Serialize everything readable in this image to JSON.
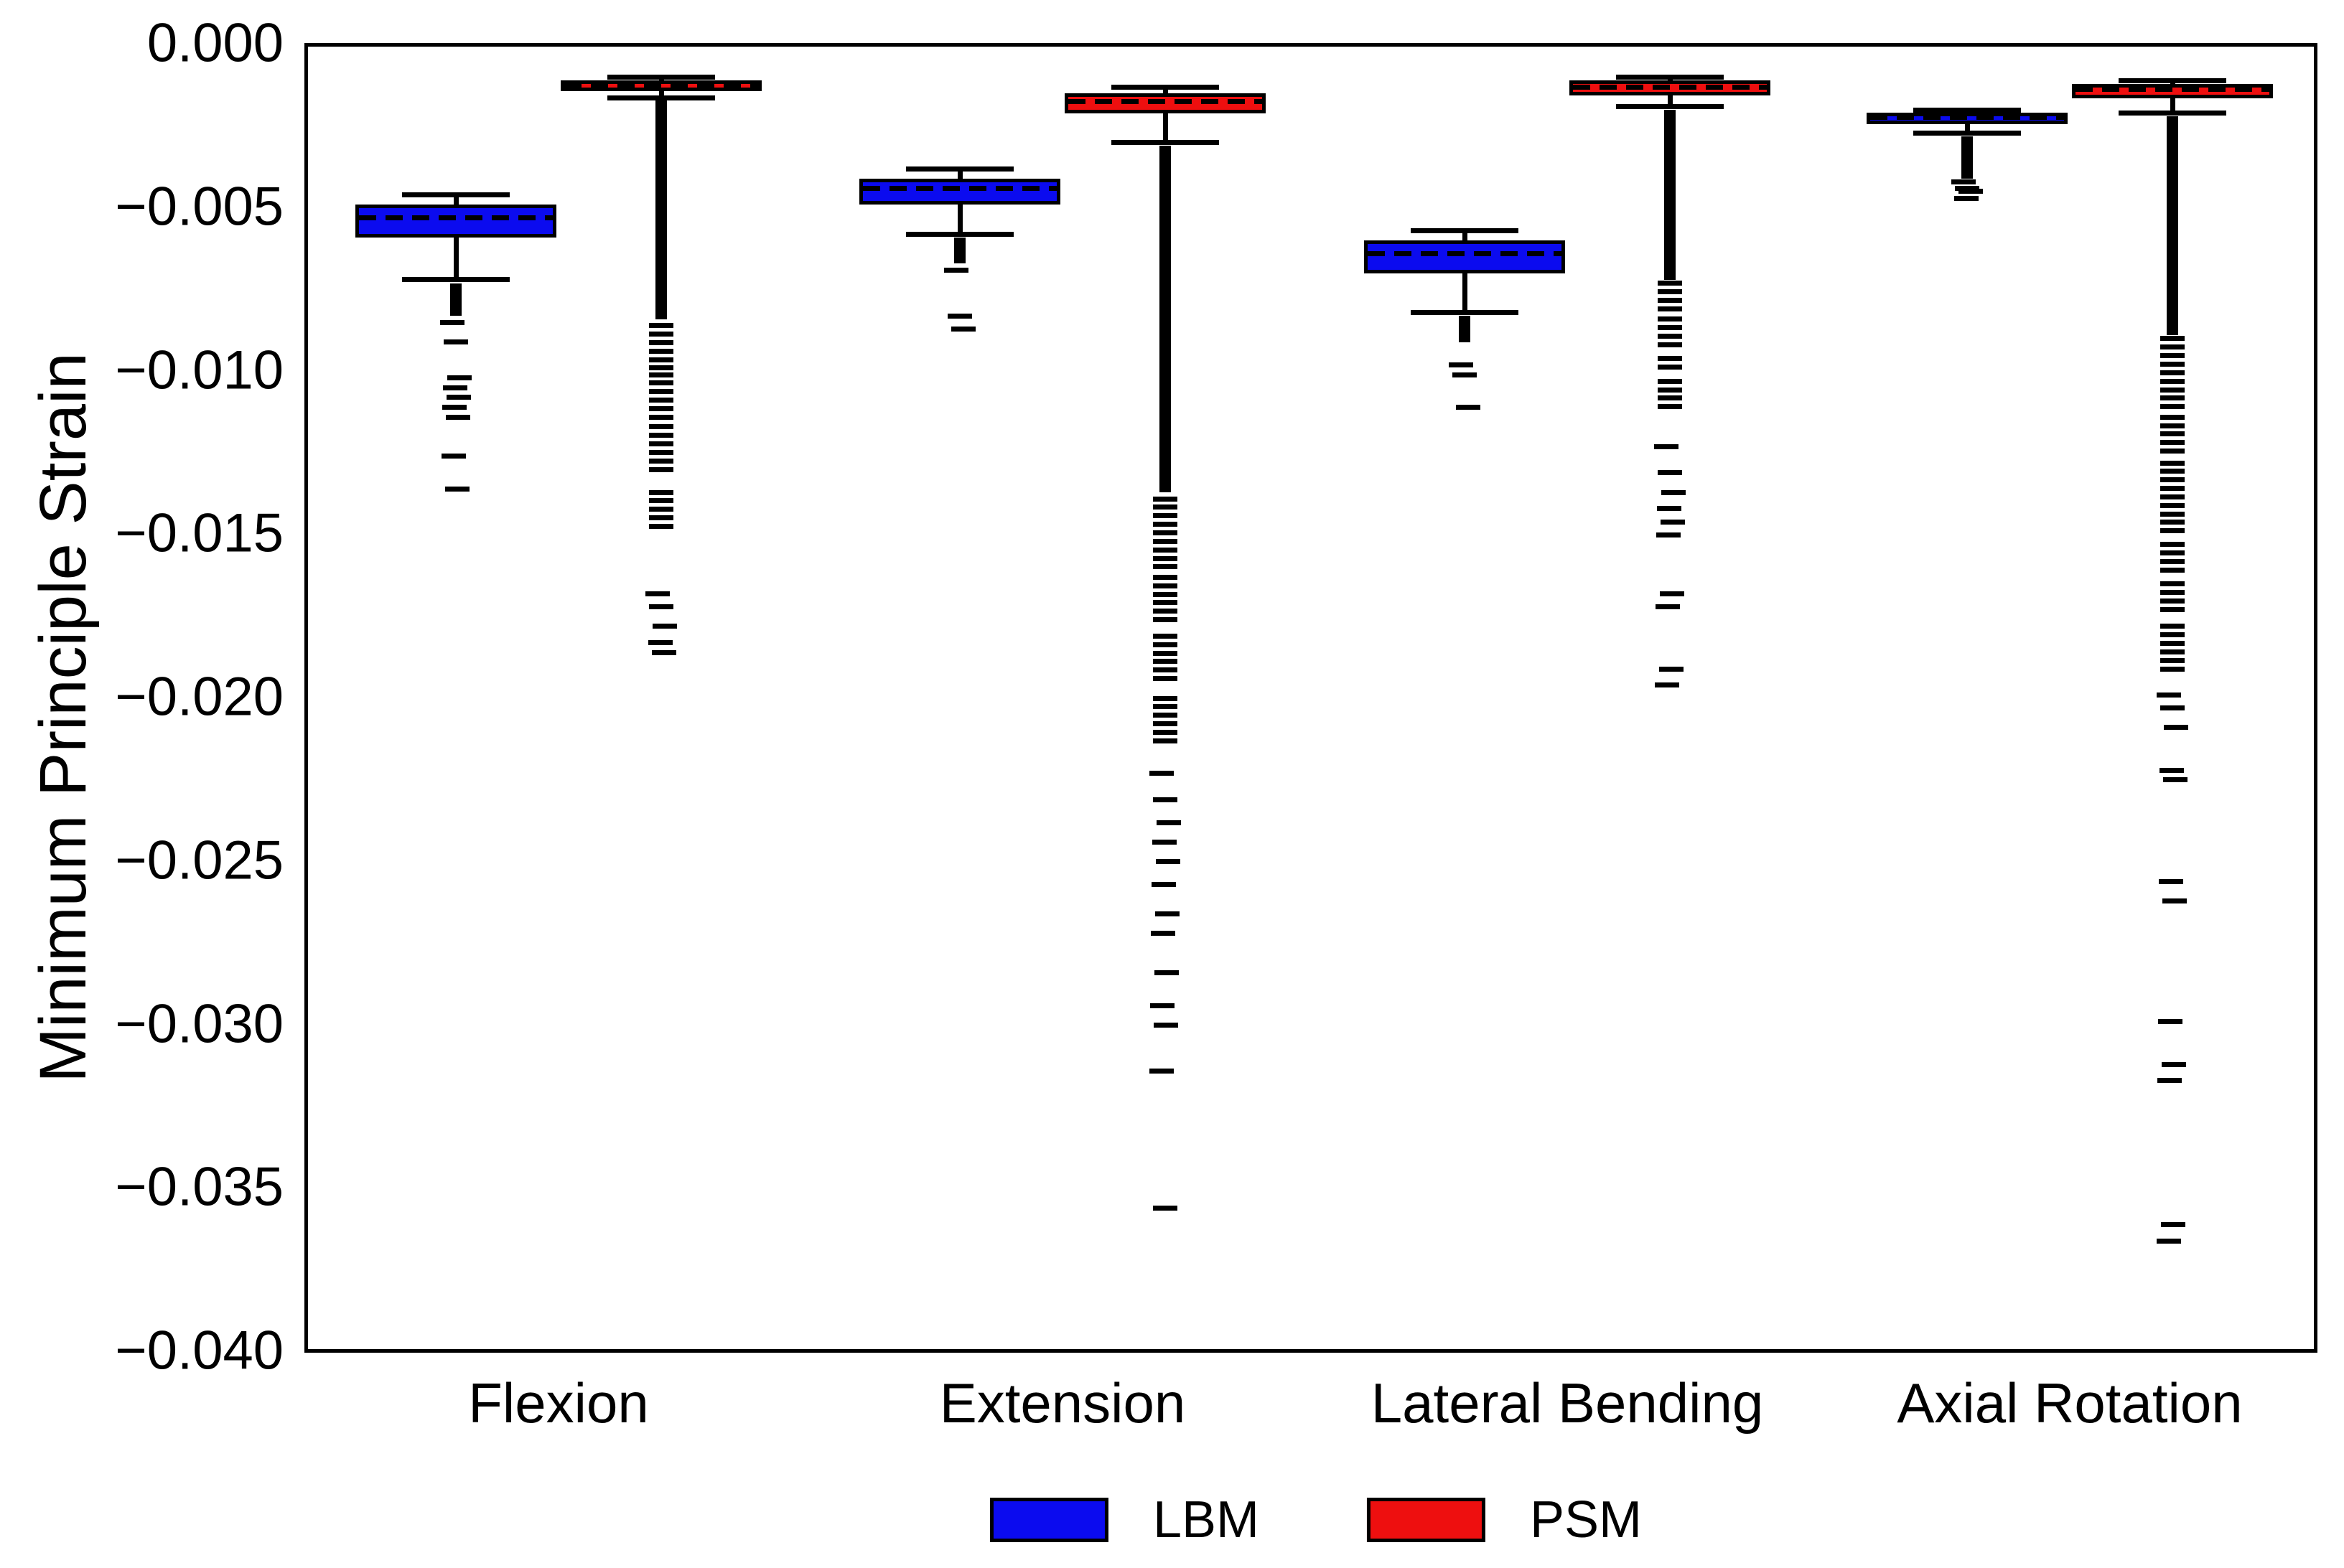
{
  "figure": {
    "background": "#ffffff",
    "ink_color": "#000000"
  },
  "chart_data": {
    "type": "boxplot",
    "title": "",
    "ylabel": "Minimum Principle Strain",
    "xlabel": "",
    "ylim": [
      -0.04,
      0.0
    ],
    "grid": false,
    "legend_position": "bottom-center",
    "y_ticks": [
      {
        "value": 0.0,
        "label": "0.000"
      },
      {
        "value": -0.005,
        "label": "−0.005"
      },
      {
        "value": -0.01,
        "label": "−0.010"
      },
      {
        "value": -0.015,
        "label": "−0.015"
      },
      {
        "value": -0.02,
        "label": "−0.020"
      },
      {
        "value": -0.025,
        "label": "−0.025"
      },
      {
        "value": -0.03,
        "label": "−0.030"
      },
      {
        "value": -0.035,
        "label": "−0.035"
      },
      {
        "value": -0.04,
        "label": "−0.040"
      }
    ],
    "categories": [
      "Flexion",
      "Extension",
      "Lateral Bending",
      "Axial Rotation"
    ],
    "series": [
      {
        "name": "LBM",
        "color": "#0b0bef"
      },
      {
        "name": "PSM",
        "color": "#ee0f0f"
      }
    ],
    "boxes": [
      {
        "category": "Flexion",
        "series": "LBM",
        "whisker_top": -0.0046,
        "q3": -0.0049,
        "median": -0.0053,
        "q1": -0.0059,
        "whisker_bottom": -0.0072,
        "dense_solid": [
          -0.0073,
          -0.0083
        ],
        "banded_segments": [],
        "outliers": [
          -0.0085,
          -0.0091,
          -0.0102,
          -0.0105,
          -0.0108,
          -0.0111,
          -0.0114,
          -0.0126,
          -0.0136
        ]
      },
      {
        "category": "Flexion",
        "series": "PSM",
        "whisker_top": -0.001,
        "q3": -0.0011,
        "median": -0.00126,
        "q1": -0.00143,
        "whisker_bottom": -0.00164,
        "dense_solid": [
          -0.0017,
          -0.0084
        ],
        "banded_segments": [
          [
            -0.0086,
            -0.0099
          ],
          [
            -0.0101,
            -0.0115
          ],
          [
            -0.0117,
            -0.0132
          ],
          [
            -0.0137,
            -0.0148
          ]
        ],
        "outliers": [
          -0.0168,
          -0.0172,
          -0.0178,
          -0.0183,
          -0.0186
        ]
      },
      {
        "category": "Extension",
        "series": "LBM",
        "whisker_top": -0.0038,
        "q3": -0.0041,
        "median": -0.0044,
        "q1": -0.0049,
        "whisker_bottom": -0.0058,
        "dense_solid": [
          -0.0059,
          -0.0067
        ],
        "banded_segments": [],
        "outliers": [
          -0.0069,
          -0.0083,
          -0.0087
        ]
      },
      {
        "category": "Extension",
        "series": "PSM",
        "whisker_top": -0.0013,
        "q3": -0.0015,
        "median": -0.00174,
        "q1": -0.0021,
        "whisker_bottom": -0.003,
        "dense_solid": [
          -0.0031,
          -0.0137
        ],
        "banded_segments": [
          [
            -0.0139,
            -0.016
          ],
          [
            -0.0163,
            -0.0178
          ],
          [
            -0.0181,
            -0.0196
          ],
          [
            -0.02,
            -0.0215
          ]
        ],
        "outliers": [
          -0.0223,
          -0.0231,
          -0.0238,
          -0.0244,
          -0.025,
          -0.0257,
          -0.0266,
          -0.0272,
          -0.0284,
          -0.0294,
          -0.03,
          -0.0314,
          -0.0356
        ]
      },
      {
        "category": "Lateral Bending",
        "series": "LBM",
        "whisker_top": -0.0057,
        "q3": -0.006,
        "median": -0.0064,
        "q1": -0.007,
        "whisker_bottom": -0.0082,
        "dense_solid": [
          -0.0083,
          -0.0091
        ],
        "banded_segments": [],
        "outliers": [
          -0.0098,
          -0.0101,
          -0.0111
        ]
      },
      {
        "category": "Lateral Bending",
        "series": "PSM",
        "whisker_top": -0.001,
        "q3": -0.0011,
        "median": -0.0013,
        "q1": -0.00155,
        "whisker_bottom": -0.0019,
        "dense_solid": [
          -0.002,
          -0.0072
        ],
        "banded_segments": [
          [
            -0.0073,
            -0.0082
          ],
          [
            -0.0084,
            -0.0094
          ],
          [
            -0.0096,
            -0.0099
          ],
          [
            -0.0103,
            -0.0111
          ]
        ],
        "outliers": [
          -0.0123,
          -0.0131,
          -0.0137,
          -0.0142,
          -0.0146,
          -0.015,
          -0.0168,
          -0.0172,
          -0.0191,
          -0.0196
        ]
      },
      {
        "category": "Axial Rotation",
        "series": "LBM",
        "whisker_top": -0.002,
        "q3": -0.00209,
        "median": -0.00222,
        "q1": -0.00244,
        "whisker_bottom": -0.00272,
        "dense_solid": [
          -0.0028,
          -0.0041
        ],
        "banded_segments": [],
        "outliers": [
          -0.0042,
          -0.0044,
          -0.0045,
          -0.0047
        ]
      },
      {
        "category": "Axial Rotation",
        "series": "PSM",
        "whisker_top": -0.0011,
        "q3": -0.0012,
        "median": -0.00138,
        "q1": -0.00165,
        "whisker_bottom": -0.0021,
        "dense_solid": [
          -0.0022,
          -0.0089
        ],
        "banded_segments": [
          [
            -0.009,
            -0.0101
          ],
          [
            -0.0103,
            -0.0112
          ],
          [
            -0.0114,
            -0.0126
          ],
          [
            -0.0128,
            -0.014
          ],
          [
            -0.0141,
            -0.0151
          ],
          [
            -0.0153,
            -0.0162
          ],
          [
            -0.0165,
            -0.0174
          ],
          [
            -0.0178,
            -0.0193
          ]
        ],
        "outliers": [
          -0.0199,
          -0.0203,
          -0.0209,
          -0.0222,
          -0.0225,
          -0.0256,
          -0.0262,
          -0.0299,
          -0.0312,
          -0.0317,
          -0.0361,
          -0.0366
        ]
      }
    ],
    "legend": {
      "items": [
        {
          "label": "LBM",
          "color": "#0b0bef"
        },
        {
          "label": "PSM",
          "color": "#ee0f0f"
        }
      ]
    }
  }
}
